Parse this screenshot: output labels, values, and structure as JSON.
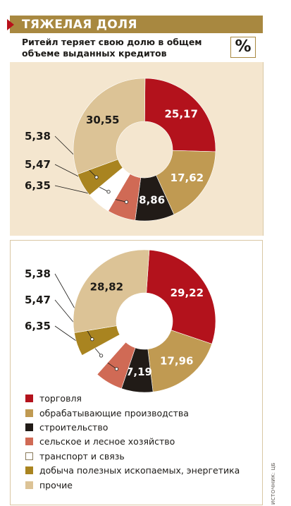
{
  "header": {
    "title": "ТЯЖЕЛАЯ ДОЛЯ",
    "subtitle": "Ритейл теряет свою долю в общем объеме выданных кредитов",
    "unit": "%"
  },
  "source": "ИСТОЧНИК: ЦБ",
  "colors": {
    "header_bg": "#a88840",
    "arrow": "#b8101a",
    "panel_top_bg": "#f4e6cf"
  },
  "legend": [
    {
      "label": "торговля",
      "color": "#b3121c"
    },
    {
      "label": "обрабатывающие производства",
      "color": "#c09a52"
    },
    {
      "label": "строительство",
      "color": "#211b17"
    },
    {
      "label": "сельское и лесное хозяйство",
      "color": "#d06a55"
    },
    {
      "label": "транспорт и связь",
      "color": "#ffffff"
    },
    {
      "label": "добыча полезных ископаемых, энергетика",
      "color": "#a98420"
    },
    {
      "label": "прочие",
      "color": "#dcc396"
    }
  ],
  "chart_data": [
    {
      "type": "pie",
      "donut": true,
      "categories": [
        "торговля",
        "обрабатывающие производства",
        "строительство",
        "сельское и лесное хозяйство",
        "транспорт и связь",
        "добыча полезных ископаемых, энергетика",
        "прочие"
      ],
      "values": [
        25.17,
        17.62,
        8.86,
        6.35,
        5.47,
        5.38,
        30.55
      ],
      "labels": [
        "25,17",
        "17,62",
        "8,86",
        "6,35",
        "5,47",
        "5,38",
        "30,55"
      ]
    },
    {
      "type": "pie",
      "donut": true,
      "categories": [
        "торговля",
        "обрабатывающие производства",
        "строительство",
        "сельское и лесное хозяйство",
        "транспорт и связь",
        "добыча полезных ископаемых, энергетика",
        "прочие"
      ],
      "values": [
        29.22,
        17.96,
        7.19,
        6.35,
        5.47,
        5.38,
        28.82
      ],
      "labels": [
        "29,22",
        "17,96",
        "7,19",
        "6,35",
        "5,47",
        "5,38",
        "28,82"
      ]
    }
  ]
}
